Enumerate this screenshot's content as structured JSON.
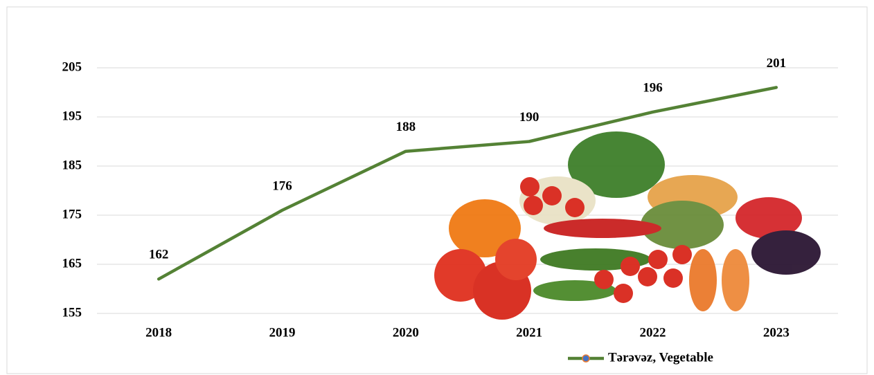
{
  "chart_data": {
    "type": "line",
    "categories": [
      "2018",
      "2019",
      "2020",
      "2021",
      "2022",
      "2023"
    ],
    "series": [
      {
        "name": "Tərəvəz, Vegetable",
        "color": "#548235",
        "marker_color": "#4472c4",
        "values": [
          162,
          176,
          188,
          190,
          196,
          201
        ]
      }
    ],
    "ylim": [
      155,
      205
    ],
    "yticks": [
      155,
      165,
      175,
      185,
      195,
      205
    ],
    "grid": true,
    "legend": "bottom"
  }
}
